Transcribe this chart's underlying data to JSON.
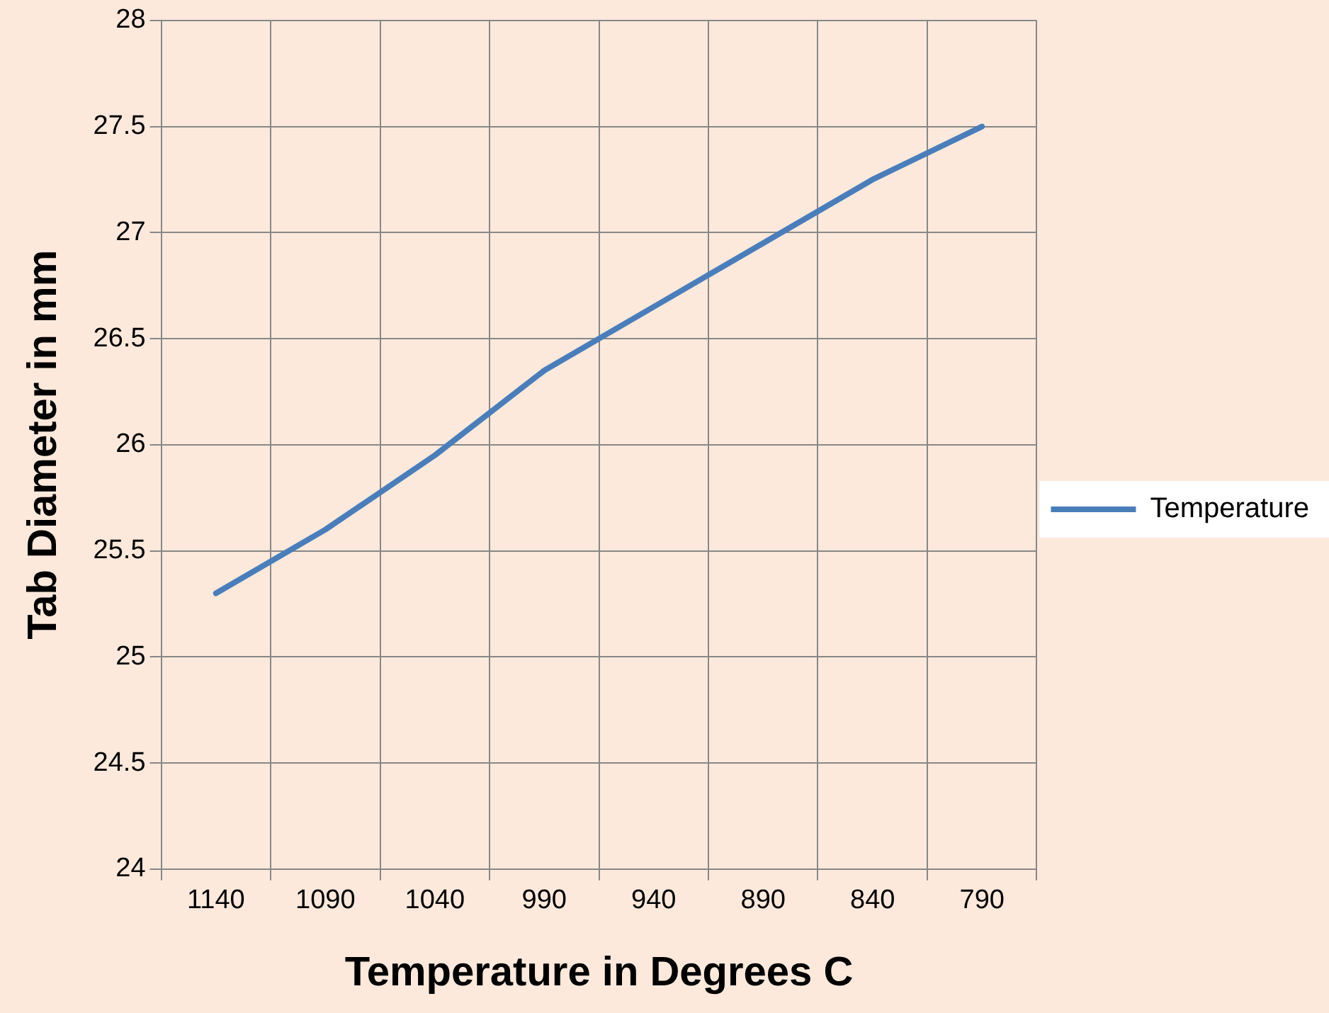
{
  "chart_data": {
    "type": "line",
    "xlabel": "Temperature in Degrees C",
    "ylabel": "Tab Diameter in mm",
    "categories": [
      "1140",
      "1090",
      "1040",
      "990",
      "940",
      "890",
      "840",
      "790"
    ],
    "series": [
      {
        "name": "Temperature",
        "color": "#4a7ebb",
        "values": [
          25.3,
          25.6,
          25.95,
          26.35,
          26.65,
          26.95,
          27.25,
          27.5
        ]
      }
    ],
    "ylim": [
      24,
      28
    ],
    "yticks": [
      24,
      24.5,
      25,
      25.5,
      26,
      26.5,
      27,
      27.5,
      28
    ],
    "grid": true,
    "legend": "right",
    "marker": "none",
    "line_style": "solid"
  }
}
